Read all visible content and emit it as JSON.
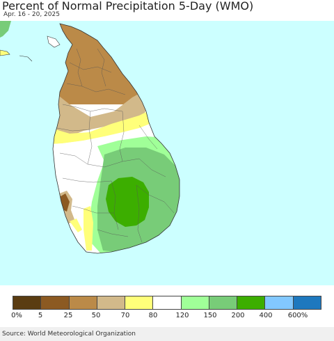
{
  "header": {
    "title": "Percent of Normal Precipitation 5-Day (WMO)",
    "subtitle": "Apr. 16 - 20, 2025"
  },
  "map": {
    "ocean_color": "#ccffff",
    "region": "Sri Lanka"
  },
  "legend": {
    "colors": [
      "#5a3c12",
      "#8c5a22",
      "#bb8a48",
      "#d2b98a",
      "#ffff7a",
      "#ffffff",
      "#a0ff98",
      "#78cc78",
      "#3cae00",
      "#82c8ff",
      "#1e78be"
    ],
    "labels": [
      "0%",
      "5",
      "25",
      "50",
      "70",
      "80",
      "120",
      "150",
      "200",
      "400",
      "600%"
    ]
  },
  "footer": {
    "source": "Source: World Meteorological Organization"
  }
}
